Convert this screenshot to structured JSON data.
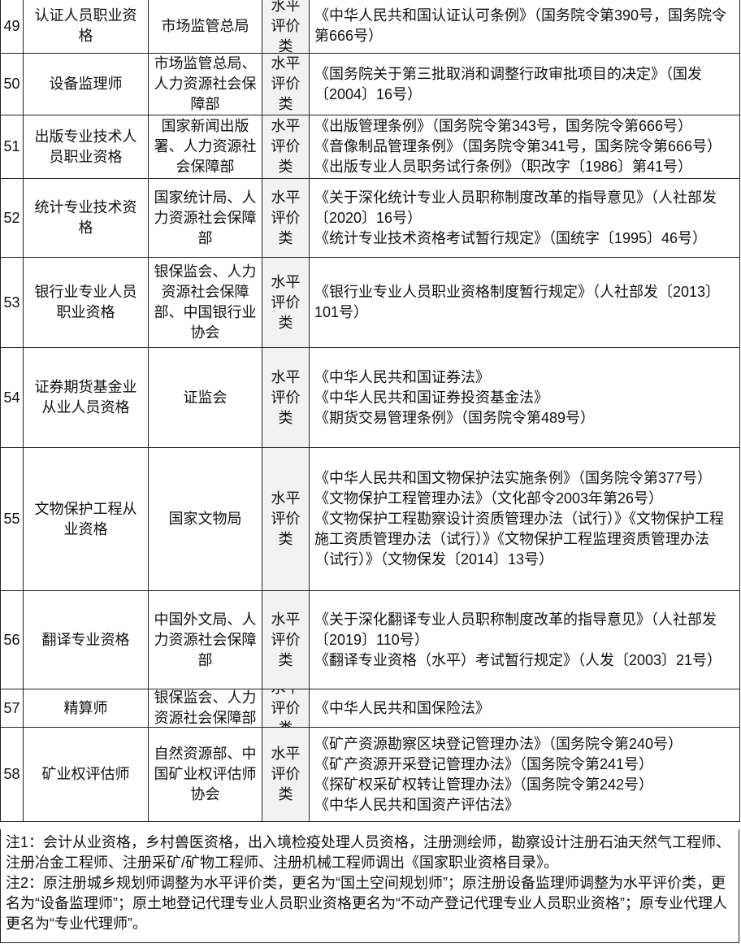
{
  "rows": [
    {
      "no": "49",
      "name": "认证人员职业资格",
      "dept": "市场监管总局",
      "type": "水平评价类",
      "basis": [
        "《中华人民共和国认证认可条例》（国务院令第390号，国务院令第666号）"
      ]
    },
    {
      "no": "50",
      "name": "设备监理师",
      "dept": "市场监管总局、人力资源社会保障部",
      "type": "水平评价类",
      "basis": [
        "《国务院关于第三批取消和调整行政审批项目的决定》（国发〔2004〕16号）"
      ]
    },
    {
      "no": "51",
      "name": "出版专业技术人员职业资格",
      "dept": "国家新闻出版署、人力资源社会保障部",
      "type": "水平评价类",
      "basis": [
        "《出版管理条例》（国务院令第343号，国务院令第666号）",
        "《音像制品管理条例》（国务院令第341号，国务院令第666号）",
        "《出版专业人员职务试行条例》（职改字〔1986〕第41号）"
      ]
    },
    {
      "no": "52",
      "name": "统计专业技术资格",
      "dept": "国家统计局、人力资源社会保障部",
      "type": "水平评价类",
      "basis": [
        "《关于深化统计专业人员职称制度改革的指导意见》（人社部发〔2020〕16号）",
        "《统计专业技术资格考试暂行规定》（国统字〔1995〕46号）"
      ]
    },
    {
      "no": "53",
      "name": "银行业专业人员职业资格",
      "dept": "银保监会、人力资源社会保障部、中国银行业协会",
      "type": "水平评价类",
      "basis": [
        "《银行业专业人员职业资格制度暂行规定》（人社部发〔2013〕101号）"
      ]
    },
    {
      "no": "54",
      "name": "证券期货基金业从业人员资格",
      "dept": "证监会",
      "type": "水平评价类",
      "basis": [
        "《中华人民共和国证券法》",
        "《中华人民共和国证券投资基金法》",
        "《期货交易管理条例》（国务院令第489号）"
      ]
    },
    {
      "no": "55",
      "name": "文物保护工程从业资格",
      "dept": "国家文物局",
      "type": "水平评价类",
      "basis": [
        "《中华人民共和国文物保护法实施条例》（国务院令第377号）",
        "《文物保护工程管理办法》（文化部令2003年第26号）",
        "《文物保护工程勘察设计资质管理办法（试行）》《文物保护工程施工资质管理办法（试行）》《文物保护工程监理资质管理办法（试行）》（文物保发〔2014〕13号）"
      ]
    },
    {
      "no": "56",
      "name": "翻译专业资格",
      "dept": "中国外文局、人力资源社会保障部",
      "type": "水平评价类",
      "basis": [
        "《关于深化翻译专业人员职称制度改革的指导意见》（人社部发〔2019〕110号）",
        "《翻译专业资格（水平）考试暂行规定》（人发〔2003〕21号）"
      ]
    },
    {
      "no": "57",
      "name": "精算师",
      "dept": "银保监会、人力资源社会保障部",
      "type": "水平评价类",
      "basis": [
        "《中华人民共和国保险法》"
      ]
    },
    {
      "no": "58",
      "name": "矿业权评估师",
      "dept": "自然资源部、中国矿业权评估师协会",
      "type": "水平评价类",
      "basis": [
        "《矿产资源勘察区块登记管理办法》（国务院令第240号）",
        "《矿产资源开采登记管理办法》（国务院令第241号）",
        "《探矿权采矿权转让管理办法》（国务院令第242号）",
        "《中华人民共和国资产评估法》"
      ]
    }
  ],
  "notes": {
    "note1": "注1：会计从业资格，乡村兽医资格，出入境检疫处理人员资格，注册测绘师，勘察设计注册石油天然气工程师、注册冶金工程师、注册采矿/矿物工程师、注册机械工程师调出《国家职业资格目录》。",
    "note2": "注2：原注册城乡规划师调整为水平评价类，更名为“国土空间规划师”；原注册设备监理师调整为水平评价类，更名为“设备监理师”；原土地登记代理专业人员职业资格更名为“不动产登记代理专业人员职业资格”；原专业代理人更名为“专业代理师”。"
  }
}
